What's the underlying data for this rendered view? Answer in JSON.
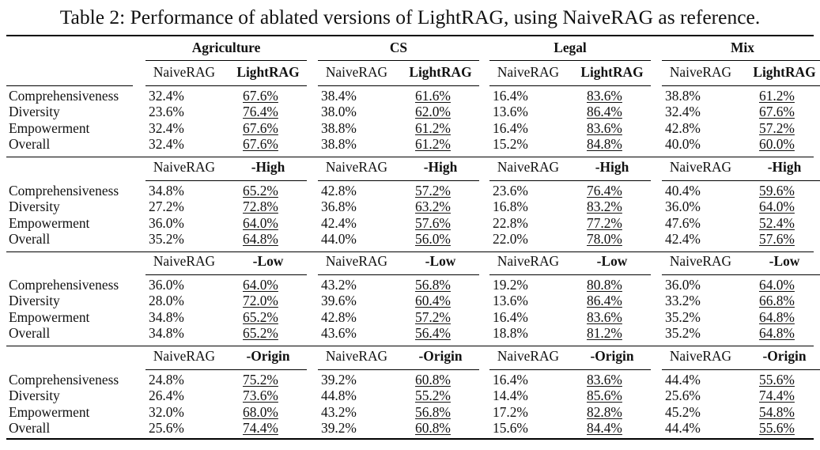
{
  "caption": "Table 2: Performance of ablated versions of LightRAG, using NaiveRAG as reference.",
  "domains": [
    "Agriculture",
    "CS",
    "Legal",
    "Mix"
  ],
  "metrics": [
    "Comprehensiveness",
    "Diversity",
    "Empowerment",
    "Overall"
  ],
  "groups": [
    {
      "baseline": "NaiveRAG",
      "variant": "LightRAG",
      "rows": [
        [
          [
            "32.4%",
            "67.6%"
          ],
          [
            "38.4%",
            "61.6%"
          ],
          [
            "16.4%",
            "83.6%"
          ],
          [
            "38.8%",
            "61.2%"
          ]
        ],
        [
          [
            "23.6%",
            "76.4%"
          ],
          [
            "38.0%",
            "62.0%"
          ],
          [
            "13.6%",
            "86.4%"
          ],
          [
            "32.4%",
            "67.6%"
          ]
        ],
        [
          [
            "32.4%",
            "67.6%"
          ],
          [
            "38.8%",
            "61.2%"
          ],
          [
            "16.4%",
            "83.6%"
          ],
          [
            "42.8%",
            "57.2%"
          ]
        ],
        [
          [
            "32.4%",
            "67.6%"
          ],
          [
            "38.8%",
            "61.2%"
          ],
          [
            "15.2%",
            "84.8%"
          ],
          [
            "40.0%",
            "60.0%"
          ]
        ]
      ]
    },
    {
      "baseline": "NaiveRAG",
      "variant": "-High",
      "rows": [
        [
          [
            "34.8%",
            "65.2%"
          ],
          [
            "42.8%",
            "57.2%"
          ],
          [
            "23.6%",
            "76.4%"
          ],
          [
            "40.4%",
            "59.6%"
          ]
        ],
        [
          [
            "27.2%",
            "72.8%"
          ],
          [
            "36.8%",
            "63.2%"
          ],
          [
            "16.8%",
            "83.2%"
          ],
          [
            "36.0%",
            "64.0%"
          ]
        ],
        [
          [
            "36.0%",
            "64.0%"
          ],
          [
            "42.4%",
            "57.6%"
          ],
          [
            "22.8%",
            "77.2%"
          ],
          [
            "47.6%",
            "52.4%"
          ]
        ],
        [
          [
            "35.2%",
            "64.8%"
          ],
          [
            "44.0%",
            "56.0%"
          ],
          [
            "22.0%",
            "78.0%"
          ],
          [
            "42.4%",
            "57.6%"
          ]
        ]
      ]
    },
    {
      "baseline": "NaiveRAG",
      "variant": "-Low",
      "rows": [
        [
          [
            "36.0%",
            "64.0%"
          ],
          [
            "43.2%",
            "56.8%"
          ],
          [
            "19.2%",
            "80.8%"
          ],
          [
            "36.0%",
            "64.0%"
          ]
        ],
        [
          [
            "28.0%",
            "72.0%"
          ],
          [
            "39.6%",
            "60.4%"
          ],
          [
            "13.6%",
            "86.4%"
          ],
          [
            "33.2%",
            "66.8%"
          ]
        ],
        [
          [
            "34.8%",
            "65.2%"
          ],
          [
            "42.8%",
            "57.2%"
          ],
          [
            "16.4%",
            "83.6%"
          ],
          [
            "35.2%",
            "64.8%"
          ]
        ],
        [
          [
            "34.8%",
            "65.2%"
          ],
          [
            "43.6%",
            "56.4%"
          ],
          [
            "18.8%",
            "81.2%"
          ],
          [
            "35.2%",
            "64.8%"
          ]
        ]
      ]
    },
    {
      "baseline": "NaiveRAG",
      "variant": "-Origin",
      "rows": [
        [
          [
            "24.8%",
            "75.2%"
          ],
          [
            "39.2%",
            "60.8%"
          ],
          [
            "16.4%",
            "83.6%"
          ],
          [
            "44.4%",
            "55.6%"
          ]
        ],
        [
          [
            "26.4%",
            "73.6%"
          ],
          [
            "44.8%",
            "55.2%"
          ],
          [
            "14.4%",
            "85.6%"
          ],
          [
            "25.6%",
            "74.4%"
          ]
        ],
        [
          [
            "32.0%",
            "68.0%"
          ],
          [
            "43.2%",
            "56.8%"
          ],
          [
            "17.2%",
            "82.8%"
          ],
          [
            "45.2%",
            "54.8%"
          ]
        ],
        [
          [
            "25.6%",
            "74.4%"
          ],
          [
            "39.2%",
            "60.8%"
          ],
          [
            "15.6%",
            "84.4%"
          ],
          [
            "44.4%",
            "55.6%"
          ]
        ]
      ]
    }
  ]
}
